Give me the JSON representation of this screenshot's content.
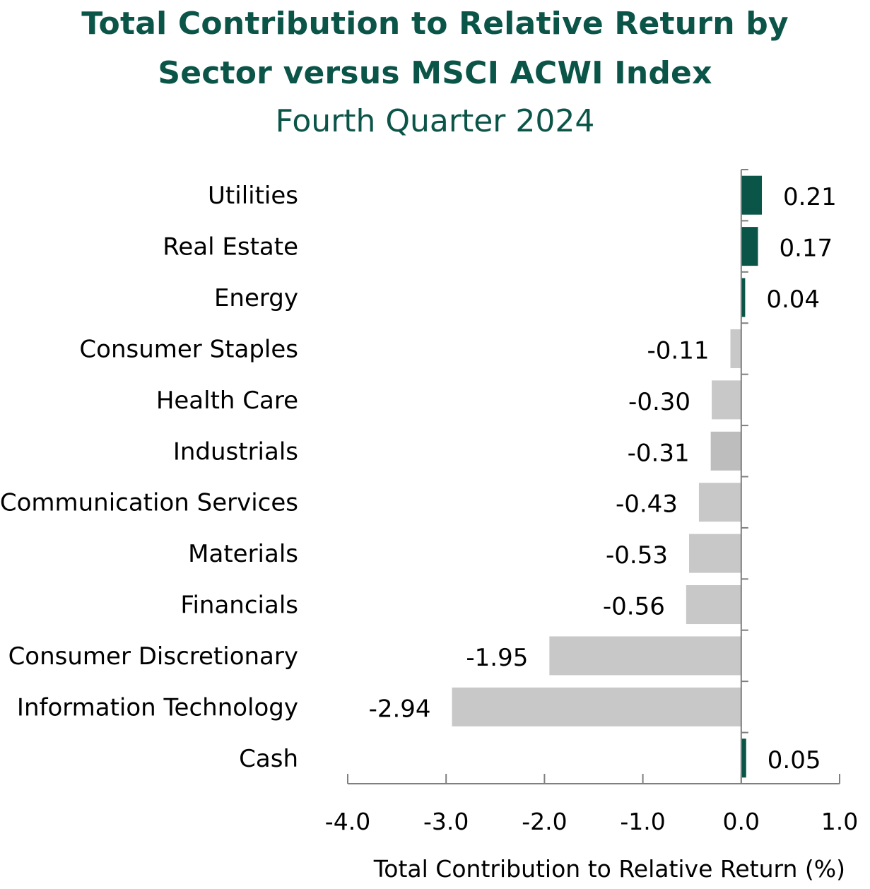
{
  "header": {
    "title_line1": "Total Contribution to Relative Return by",
    "title_line2": "Sector versus MSCI ACWI Index",
    "subtitle": "Fourth Quarter 2024"
  },
  "chart_data": {
    "type": "bar",
    "orientation": "horizontal",
    "title": "Total Contribution to Relative Return by Sector versus MSCI ACWI Index",
    "subtitle": "Fourth Quarter 2024",
    "xlabel": "Total Contribution to Relative Return (%)",
    "ylabel": "",
    "xlim": [
      -4.0,
      1.0
    ],
    "x_ticks": [
      "-4.0",
      "-3.0",
      "-2.0",
      "-1.0",
      "0.0",
      "1.0"
    ],
    "grid": false,
    "categories": [
      "Utilities",
      "Real Estate",
      "Energy",
      "Consumer Staples",
      "Health Care",
      "Industrials",
      "Communication Services",
      "Materials",
      "Financials",
      "Consumer Discretionary",
      "Information Technology",
      "Cash"
    ],
    "values": [
      0.21,
      0.17,
      0.04,
      -0.11,
      -0.3,
      -0.31,
      -0.43,
      -0.53,
      -0.56,
      -1.95,
      -2.94,
      0.05
    ],
    "value_labels": [
      "0.21",
      "0.17",
      "0.04",
      "-0.11",
      "-0.30",
      "-0.31",
      "-0.43",
      "-0.53",
      "-0.56",
      "-1.95",
      "-2.94",
      "0.05"
    ],
    "colors": {
      "positive": "#0b5448",
      "negative": "#c8c8c8",
      "industrials": "#bdbdbd",
      "axis": "#7f7f7f"
    }
  }
}
